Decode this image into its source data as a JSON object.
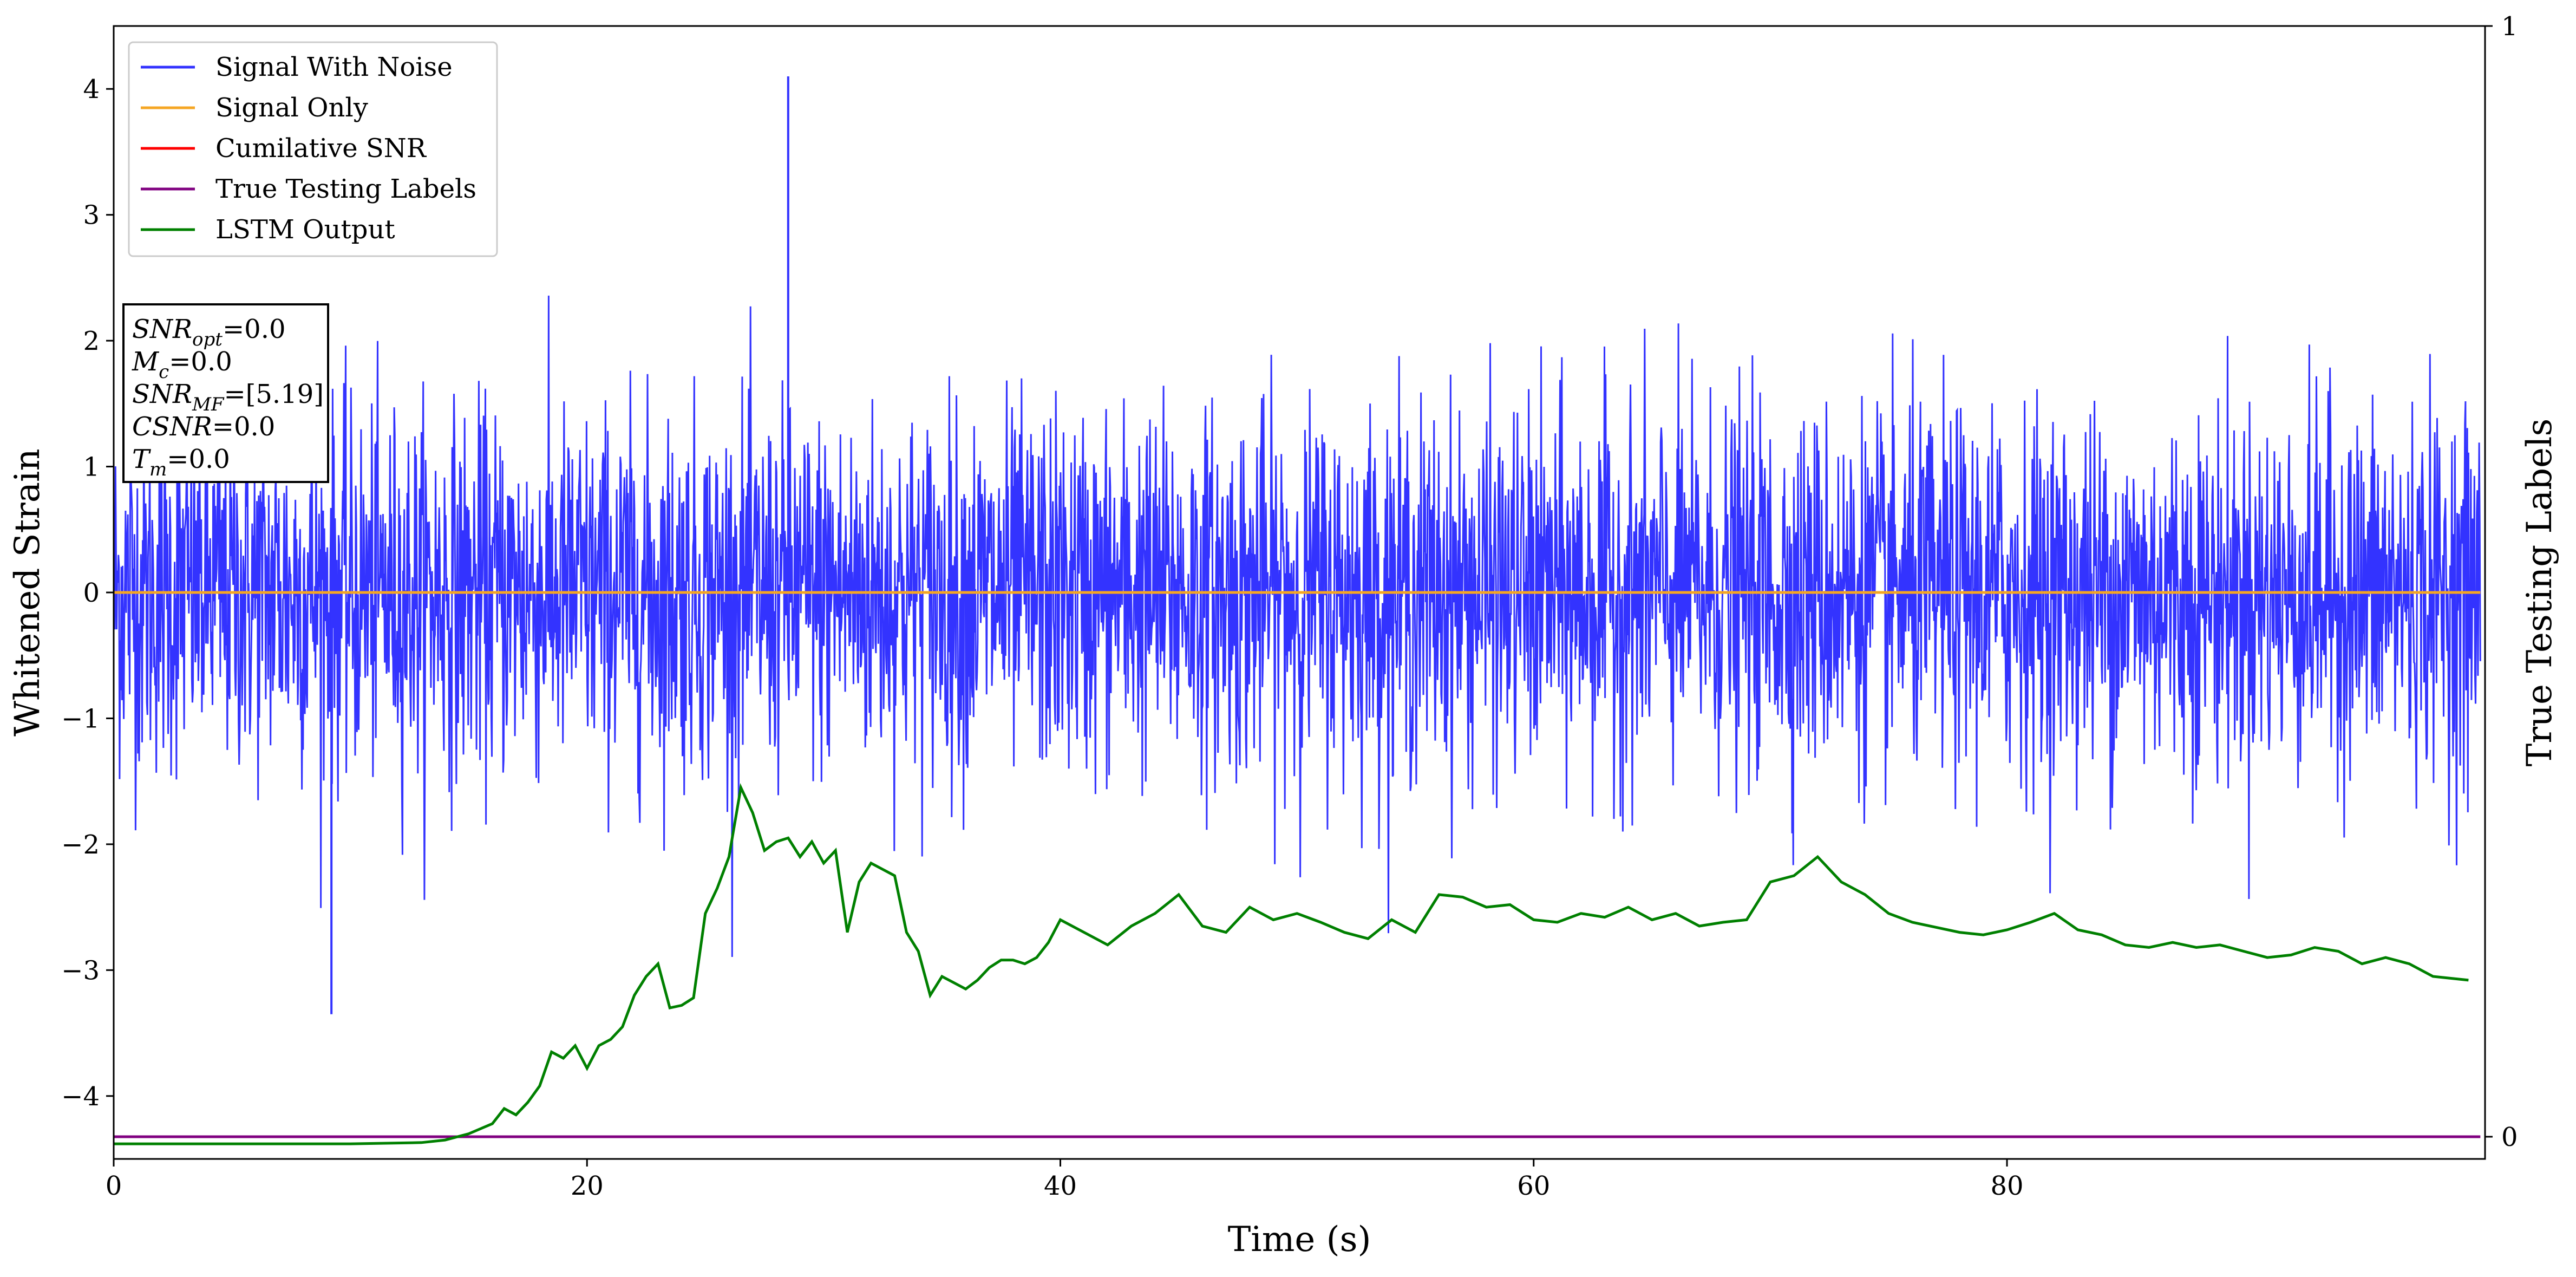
{
  "chart_data": {
    "type": "line",
    "xlabel": "Time (s)",
    "ylabel": "Whitened Strain",
    "ylabel_right": "True Testing Labels",
    "xlim": [
      0,
      100.2
    ],
    "ylim": [
      -4.5,
      4.5
    ],
    "ylim_right": [
      -0.02,
      1.0
    ],
    "x_ticks": [
      0,
      20,
      40,
      60,
      80
    ],
    "y_ticks": [
      -4,
      -3,
      -2,
      -1,
      0,
      1,
      2,
      3,
      4
    ],
    "y_ticks_right": [
      0,
      1
    ],
    "grid": false,
    "legend_position": "top-left",
    "colors": {
      "signal_with_noise": "#3333ff",
      "signal_only": "#f5a623",
      "cumulative_snr": "#ff0000",
      "true_labels": "#800080",
      "lstm_output": "#008000"
    },
    "legend": [
      {
        "name": "Signal With Noise",
        "color": "#3333ff"
      },
      {
        "name": "Signal Only",
        "color": "#f5a623"
      },
      {
        "name": "Cumilative SNR",
        "color": "#ff0000"
      },
      {
        "name": "True Testing Labels",
        "color": "#800080"
      },
      {
        "name": "LSTM Output",
        "color": "#008000"
      }
    ],
    "series": [
      {
        "name": "Signal With Noise",
        "axis": "left",
        "description_values": {
          "mean": 0.0,
          "typical_range": [
            -1.5,
            1.5
          ],
          "peak_max": 4.1,
          "peak_min": -3.35
        }
      },
      {
        "name": "Signal Only",
        "axis": "left",
        "x": [
          0,
          100
        ],
        "y": [
          0.0,
          0.0
        ]
      },
      {
        "name": "True Testing Labels",
        "axis": "right",
        "x": [
          0,
          100
        ],
        "y": [
          0.0,
          0.0
        ]
      },
      {
        "name": "LSTM Output",
        "axis": "left",
        "x": [
          0,
          10,
          13,
          14,
          15,
          16,
          16.5,
          17,
          17.5,
          18,
          18.5,
          19,
          19.5,
          20,
          20.5,
          21,
          21.5,
          22,
          22.5,
          23,
          23.5,
          24,
          24.5,
          25,
          25.5,
          26,
          26.5,
          27,
          27.5,
          28,
          28.5,
          29,
          29.5,
          30,
          30.5,
          31,
          31.5,
          32,
          32.5,
          33,
          33.5,
          34,
          34.5,
          35,
          35.5,
          36,
          36.5,
          37,
          37.5,
          38,
          38.5,
          39,
          39.5,
          40,
          41,
          42,
          43,
          44,
          45,
          46,
          47,
          48,
          49,
          50,
          51,
          52,
          53,
          54,
          55,
          56,
          57,
          58,
          59,
          60,
          61,
          62,
          63,
          64,
          65,
          66,
          67,
          68,
          69,
          70,
          71,
          72,
          73,
          74,
          75,
          76,
          77,
          78,
          79,
          80,
          81,
          82,
          83,
          84,
          85,
          86,
          87,
          88,
          89,
          90,
          91,
          92,
          93,
          94,
          95,
          96,
          97,
          98,
          99.5
        ],
        "y": [
          -4.38,
          -4.38,
          -4.37,
          -4.35,
          -4.3,
          -4.22,
          -4.1,
          -4.15,
          -4.05,
          -3.92,
          -3.65,
          -3.7,
          -3.6,
          -3.78,
          -3.6,
          -3.55,
          -3.45,
          -3.2,
          -3.05,
          -2.95,
          -3.3,
          -3.28,
          -3.22,
          -2.55,
          -2.35,
          -2.1,
          -1.55,
          -1.75,
          -2.05,
          -1.98,
          -1.95,
          -2.1,
          -1.98,
          -2.15,
          -2.05,
          -2.7,
          -2.3,
          -2.15,
          -2.2,
          -2.25,
          -2.7,
          -2.85,
          -3.2,
          -3.05,
          -3.1,
          -3.15,
          -3.08,
          -2.98,
          -2.92,
          -2.92,
          -2.95,
          -2.9,
          -2.78,
          -2.6,
          -2.7,
          -2.8,
          -2.65,
          -2.55,
          -2.4,
          -2.65,
          -2.7,
          -2.5,
          -2.6,
          -2.55,
          -2.62,
          -2.7,
          -2.75,
          -2.6,
          -2.7,
          -2.4,
          -2.42,
          -2.5,
          -2.48,
          -2.6,
          -2.62,
          -2.55,
          -2.58,
          -2.5,
          -2.6,
          -2.55,
          -2.65,
          -2.62,
          -2.6,
          -2.3,
          -2.25,
          -2.1,
          -2.3,
          -2.4,
          -2.55,
          -2.62,
          -2.66,
          -2.7,
          -2.72,
          -2.68,
          -2.62,
          -2.55,
          -2.68,
          -2.72,
          -2.8,
          -2.82,
          -2.78,
          -2.82,
          -2.8,
          -2.85,
          -2.9,
          -2.88,
          -2.82,
          -2.85,
          -2.95,
          -2.9,
          -2.95,
          -3.05,
          -3.08
        ]
      }
    ],
    "annotation_box": {
      "lines": [
        {
          "var": "SNR",
          "sub": "opt",
          "value": "=0.0"
        },
        {
          "var": "M",
          "sub": "c",
          "value": "=0.0"
        },
        {
          "var": "SNR",
          "sub": "MF",
          "value": "=[5.19]"
        },
        {
          "var": "CSNR",
          "sub": "",
          "value": "=0.0"
        },
        {
          "var": "T",
          "sub": "m",
          "value": "=0.0"
        }
      ]
    }
  }
}
